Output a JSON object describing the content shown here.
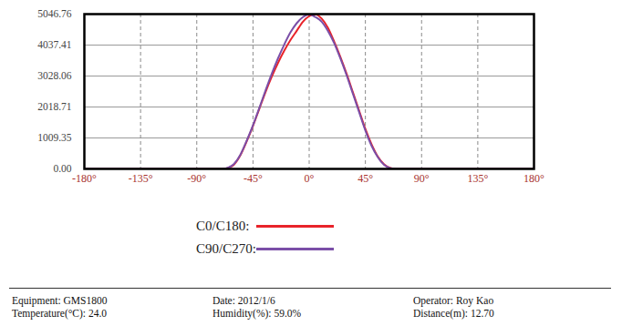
{
  "chart_data": {
    "type": "line",
    "x": [
      -180,
      -70,
      -65,
      -60,
      -55,
      -50,
      -45,
      -40,
      -35,
      -30,
      -25,
      -20,
      -15,
      -10,
      -5,
      0,
      5,
      10,
      15,
      20,
      25,
      30,
      35,
      40,
      45,
      50,
      55,
      60,
      65,
      70,
      180
    ],
    "series": [
      {
        "name": "C0/C180:",
        "color": "#e8232a",
        "values": [
          0,
          0,
          30,
          150,
          450,
          900,
          1400,
          1950,
          2500,
          3000,
          3450,
          3850,
          4200,
          4500,
          4800,
          4980,
          5040,
          4900,
          4600,
          4150,
          3650,
          3100,
          2500,
          1900,
          1300,
          800,
          400,
          150,
          30,
          0,
          0
        ]
      },
      {
        "name": "C90/C270:",
        "color": "#7b4fa8",
        "values": [
          0,
          0,
          40,
          170,
          470,
          920,
          1420,
          1980,
          2550,
          3100,
          3600,
          4050,
          4450,
          4750,
          4950,
          5040,
          4950,
          4800,
          4500,
          4100,
          3600,
          3050,
          2450,
          1850,
          1250,
          750,
          380,
          130,
          25,
          0,
          0
        ]
      }
    ],
    "xlim": [
      -180,
      180
    ],
    "xticks": [
      {
        "value": -180,
        "label": "-180°"
      },
      {
        "value": -135,
        "label": "-135°"
      },
      {
        "value": -90,
        "label": "-90°"
      },
      {
        "value": -45,
        "label": "-45°"
      },
      {
        "value": 0,
        "label": "0°"
      },
      {
        "value": 45,
        "label": "45°"
      },
      {
        "value": 90,
        "label": "90°"
      },
      {
        "value": 135,
        "label": "135°"
      },
      {
        "value": 180,
        "label": "180°"
      }
    ],
    "ylim": [
      0,
      5046.76
    ],
    "yticks": [
      {
        "value": 0,
        "label": "0.00"
      },
      1009.35,
      2018.71,
      3028.06,
      4037.41,
      5046.76
    ],
    "grid": true,
    "legend": "bottom"
  },
  "footer": [
    [
      "Equipment: GMS1800",
      "Date: 2012/1/6",
      "Operator: Roy Kao"
    ],
    [
      "Temperature(°C): 24.0",
      "Humidity(%): 59.0%",
      "Distance(m): 12.70"
    ]
  ]
}
